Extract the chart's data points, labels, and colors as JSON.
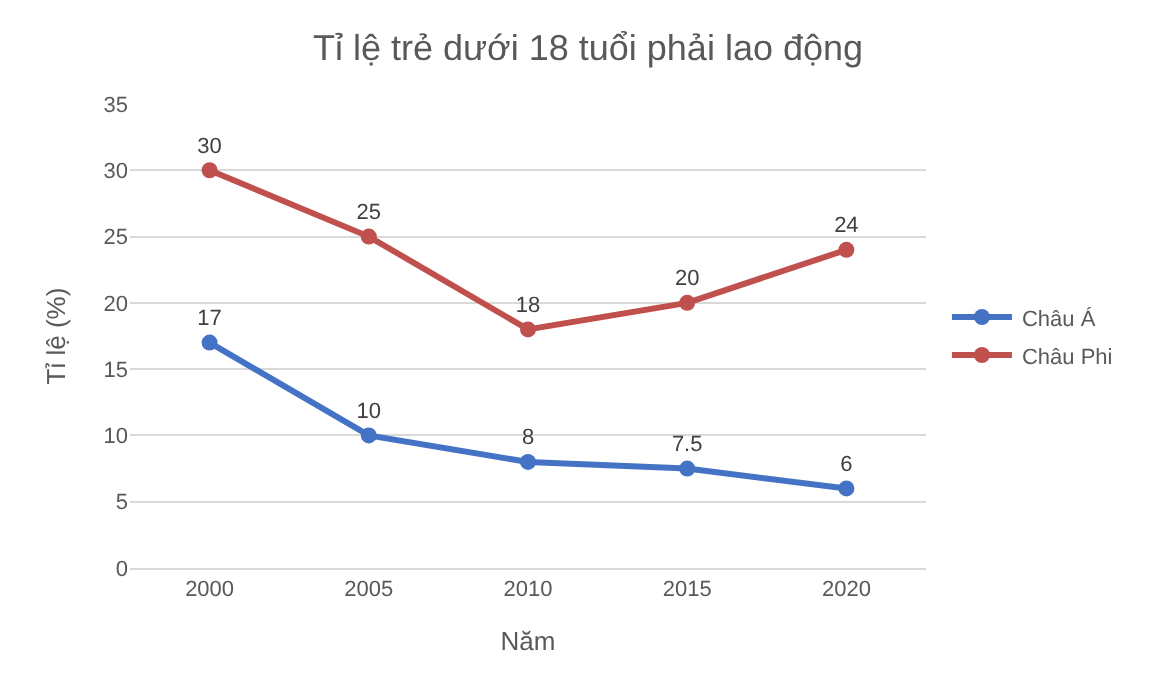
{
  "chart_data": {
    "type": "line",
    "title": "Tỉ lệ trẻ dưới 18 tuổi phải lao động",
    "xlabel": "Năm",
    "ylabel": "Tỉ lệ (%)",
    "categories": [
      "2000",
      "2005",
      "2010",
      "2015",
      "2020"
    ],
    "series": [
      {
        "name": "Châu Á",
        "color": "#4472c4",
        "values": [
          17,
          10,
          8,
          7.5,
          6
        ]
      },
      {
        "name": "Châu Phi",
        "color": "#c0504d",
        "values": [
          30,
          25,
          18,
          20,
          24
        ]
      }
    ],
    "ylim": [
      0,
      35
    ],
    "yticks": [
      0,
      5,
      10,
      15,
      20,
      25,
      30,
      35
    ],
    "grid": "y",
    "legend": "right",
    "marker": "circle",
    "line_style": "solid",
    "data_labels": true
  }
}
